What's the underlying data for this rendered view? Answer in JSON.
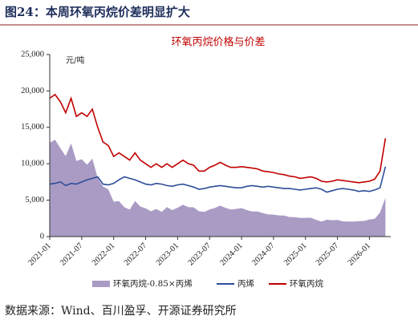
{
  "chart_data": {
    "type": "line",
    "figure_title": "图24：本周环氧丙烷价差明显扩大",
    "title": "环氧丙烷价格与价差",
    "y_unit": "元/吨",
    "source": "数据来源：Wind、百川盈孚、开源证券研究所",
    "x": [
      "2021-01",
      "2021-02",
      "2021-03",
      "2021-04",
      "2021-05",
      "2021-06",
      "2021-07",
      "2021-08",
      "2021-09",
      "2021-10",
      "2021-11",
      "2021-12",
      "2022-01",
      "2022-02",
      "2022-03",
      "2022-04",
      "2022-05",
      "2022-06",
      "2022-07",
      "2022-08",
      "2022-09",
      "2022-10",
      "2022-11",
      "2022-12",
      "2023-01",
      "2023-02",
      "2023-03",
      "2023-04",
      "2023-05",
      "2023-06",
      "2023-07",
      "2023-08",
      "2023-09",
      "2023-10",
      "2023-11",
      "2023-12",
      "2024-01",
      "2024-02",
      "2024-03",
      "2024-04",
      "2024-05",
      "2024-06",
      "2024-07",
      "2024-08",
      "2024-09",
      "2024-10",
      "2024-11",
      "2024-12",
      "2025-01",
      "2025-02",
      "2025-03",
      "2025-04",
      "2025-05",
      "2025-06",
      "2025-07",
      "2025-08",
      "2025-09",
      "2025-10",
      "2025-11",
      "2025-12",
      "2026-01",
      "2026-02",
      "2026-03",
      "2026-04"
    ],
    "xlim": [
      "2021-01",
      "2026-05"
    ],
    "xticks": [
      "2021-01",
      "2021-07",
      "2022-01",
      "2022-07",
      "2023-01",
      "2023-07",
      "2024-01",
      "2024-07",
      "2025-01",
      "2025-07",
      "2026-01"
    ],
    "ylim": [
      0,
      25000
    ],
    "yticks": [
      0,
      {
        "value": 5000,
        "label": "5,000"
      },
      {
        "value": 10000,
        "label": "10,000"
      },
      {
        "value": 15000,
        "label": "15,000"
      },
      {
        "value": 20000,
        "label": "20,000"
      },
      {
        "value": 25000,
        "label": "25,000"
      }
    ],
    "series": [
      {
        "name": "环氧丙烷-0.85×丙烯",
        "kind": "area",
        "color": "#a99bc4",
        "values": [
          12880,
          13295,
          12125,
          11050,
          12795,
          10380,
          10625,
          9870,
          10700,
          8030,
          6880,
          6465,
          4795,
          4870,
          4030,
          3700,
          4870,
          4125,
          3880,
          3465,
          3795,
          3380,
          4050,
          3635,
          3965,
          4380,
          4050,
          4020,
          3475,
          3390,
          3720,
          3935,
          4250,
          3935,
          3720,
          3805,
          3905,
          3635,
          3450,
          3435,
          3220,
          3035,
          3020,
          2905,
          2890,
          2690,
          2675,
          2560,
          2575,
          2590,
          2305,
          2075,
          2315,
          2245,
          2275,
          2090,
          2075,
          2060,
          2130,
          2145,
          2330,
          2460,
          3305,
          5340
        ]
      },
      {
        "name": "丙烯",
        "kind": "line",
        "color": "#2f4d9a",
        "values": [
          7200,
          7300,
          7500,
          7000,
          7300,
          7200,
          7500,
          7800,
          8000,
          8200,
          7200,
          7100,
          7300,
          7800,
          8200,
          8000,
          7800,
          7500,
          7200,
          7100,
          7300,
          7200,
          7000,
          6900,
          7100,
          7200,
          7000,
          6800,
          6500,
          6600,
          6800,
          6900,
          7000,
          6900,
          6800,
          6700,
          6700,
          6900,
          7000,
          6900,
          6800,
          6900,
          6800,
          6700,
          6600,
          6600,
          6500,
          6400,
          6500,
          6600,
          6700,
          6500,
          6100,
          6300,
          6500,
          6600,
          6500,
          6400,
          6200,
          6300,
          6200,
          6400,
          6700,
          9600
        ]
      },
      {
        "name": "环氧丙烷",
        "kind": "line",
        "color": "#c00000",
        "values": [
          19000,
          19500,
          18500,
          17000,
          19000,
          16500,
          17000,
          16500,
          17500,
          15000,
          13000,
          12500,
          11000,
          11500,
          11000,
          10500,
          11500,
          10500,
          10000,
          9500,
          10000,
          9500,
          10000,
          9500,
          10000,
          10500,
          10000,
          9800,
          9000,
          9000,
          9500,
          9800,
          10200,
          9800,
          9500,
          9500,
          9600,
          9500,
          9400,
          9300,
          9000,
          8900,
          8800,
          8600,
          8500,
          8300,
          8200,
          8000,
          8100,
          8200,
          8000,
          7600,
          7500,
          7600,
          7800,
          7700,
          7600,
          7500,
          7400,
          7500,
          7600,
          7900,
          9000,
          13500
        ]
      }
    ]
  }
}
